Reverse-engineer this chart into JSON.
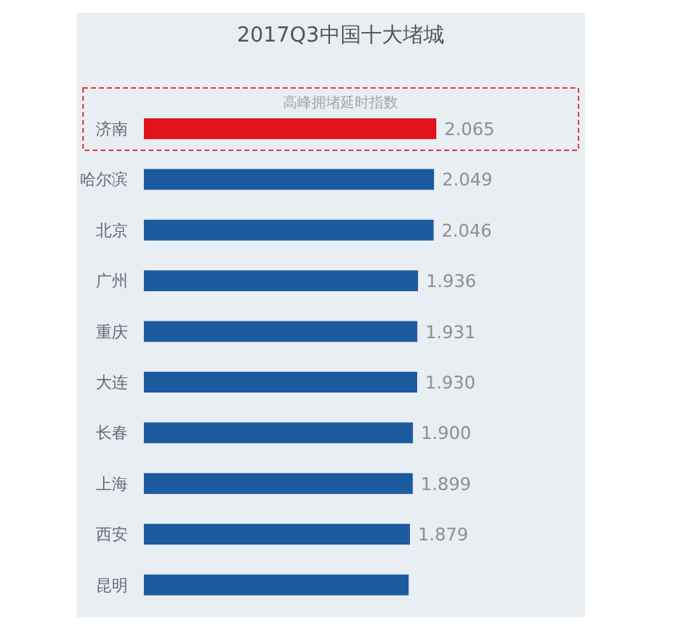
{
  "chart_data": {
    "type": "bar",
    "orientation": "horizontal",
    "title": "2017Q3中国十大堵城",
    "subtitle": "高峰拥堵延时指数",
    "categories": [
      "济南",
      "哈尔滨",
      "北京",
      "广州",
      "重庆",
      "大连",
      "长春",
      "上海",
      "西安",
      "昆明"
    ],
    "values": [
      2.065,
      2.049,
      2.046,
      1.936,
      1.931,
      1.93,
      1.9,
      1.899,
      1.879,
      1.87
    ],
    "value_labels": [
      "2.065",
      "2.049",
      "2.046",
      "1.936",
      "1.931",
      "1.930",
      "1.900",
      "1.899",
      "1.879",
      null
    ],
    "colors": [
      "#e3131b",
      "#1b5a9e",
      "#1b5a9e",
      "#1b5a9e",
      "#1b5a9e",
      "#1b5a9e",
      "#1b5a9e",
      "#1b5a9e",
      "#1b5a9e",
      "#1b5a9e"
    ]
  }
}
